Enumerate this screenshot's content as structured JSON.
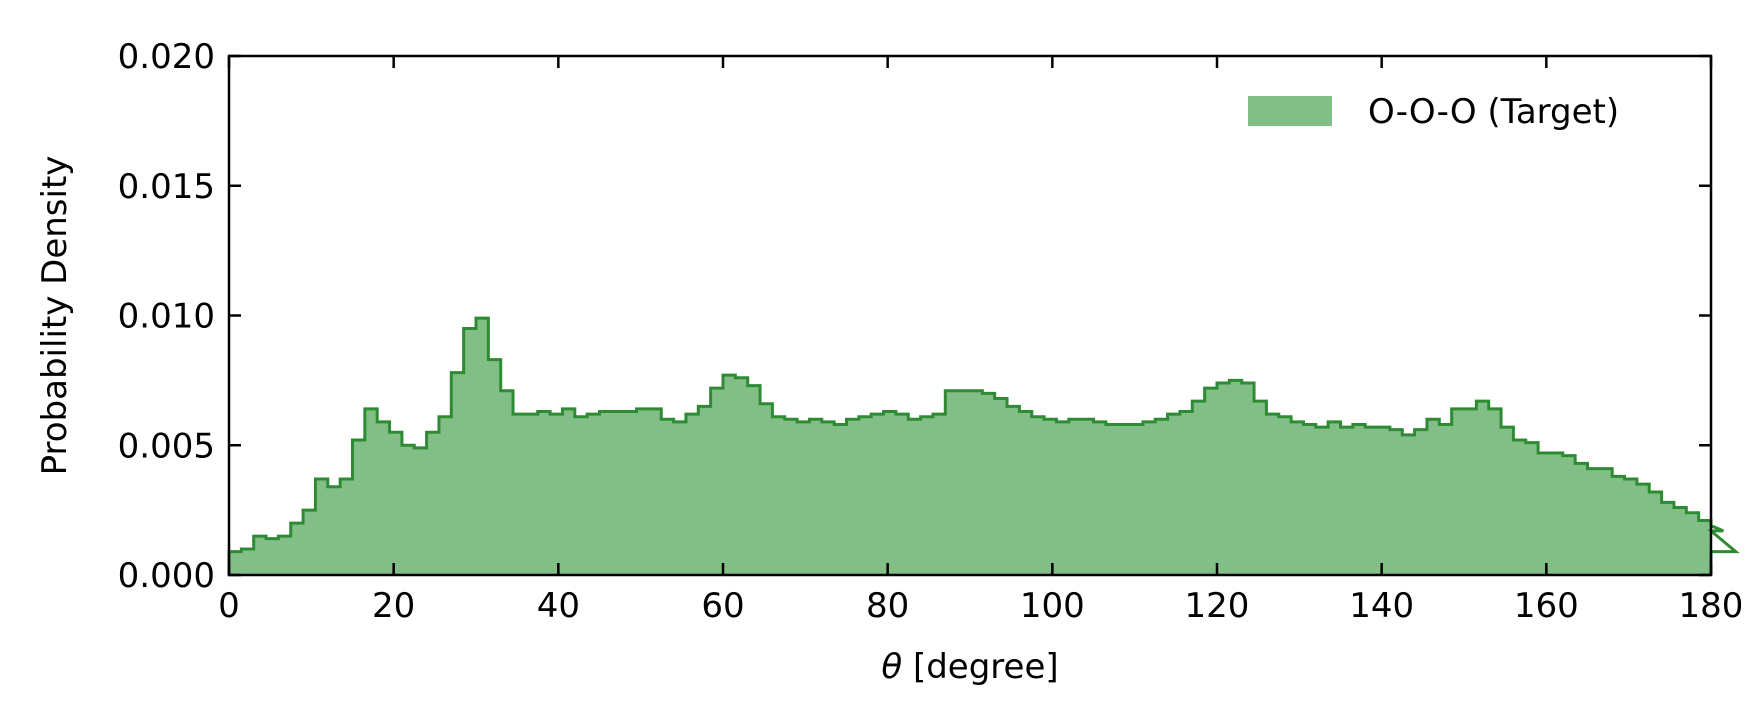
{
  "chart_data": {
    "type": "area",
    "xlabel_symbol": "θ",
    "xlabel_unit": " [degree]",
    "ylabel": "Probability Density",
    "xlim": [
      0,
      180
    ],
    "ylim": [
      0,
      0.02
    ],
    "x_ticks": [
      "0",
      "20",
      "40",
      "60",
      "80",
      "100",
      "120",
      "140",
      "160",
      "180"
    ],
    "y_ticks": [
      "0.000",
      "0.005",
      "0.010",
      "0.015",
      "0.020"
    ],
    "grid": false,
    "legend_position": "top-right",
    "colors": {
      "fill": "#82bf86",
      "line": "#2e8b34"
    },
    "series": [
      {
        "name": "O-O-O (Target)",
        "bin_width": 1.5,
        "values": [
          0.0009,
          0.001,
          0.0015,
          0.0014,
          0.0015,
          0.002,
          0.0025,
          0.0037,
          0.0034,
          0.0037,
          0.0052,
          0.0064,
          0.0059,
          0.0055,
          0.005,
          0.0049,
          0.0055,
          0.0061,
          0.0078,
          0.0095,
          0.0099,
          0.0083,
          0.0071,
          0.0062,
          0.0062,
          0.0063,
          0.0062,
          0.0064,
          0.0061,
          0.0062,
          0.0063,
          0.0063,
          0.0063,
          0.0064,
          0.0064,
          0.006,
          0.0059,
          0.0062,
          0.0065,
          0.0072,
          0.0077,
          0.0076,
          0.0073,
          0.0066,
          0.0061,
          0.006,
          0.0059,
          0.006,
          0.0059,
          0.0058,
          0.006,
          0.0061,
          0.0062,
          0.0063,
          0.0062,
          0.006,
          0.0061,
          0.0062,
          0.0071,
          0.0071,
          0.0071,
          0.007,
          0.0068,
          0.0065,
          0.0063,
          0.0061,
          0.006,
          0.0059,
          0.006,
          0.006,
          0.0059,
          0.0058,
          0.0058,
          0.0058,
          0.0059,
          0.006,
          0.0062,
          0.0063,
          0.0067,
          0.0072,
          0.0074,
          0.0075,
          0.0074,
          0.0067,
          0.0062,
          0.0061,
          0.0059,
          0.0058,
          0.0057,
          0.0059,
          0.0057,
          0.0058,
          0.0057,
          0.0057,
          0.0056,
          0.0054,
          0.0056,
          0.006,
          0.0058,
          0.0064,
          0.0064,
          0.0067,
          0.0064,
          0.0057,
          0.0052,
          0.0051,
          0.0047,
          0.0047,
          0.0046,
          0.0043,
          0.0041,
          0.0041,
          0.0038,
          0.0037,
          0.0035,
          0.0032,
          0.0028,
          0.0026,
          0.0024,
          0.0021,
          0.0019,
          0.0017,
          0.0009
        ]
      }
    ]
  }
}
